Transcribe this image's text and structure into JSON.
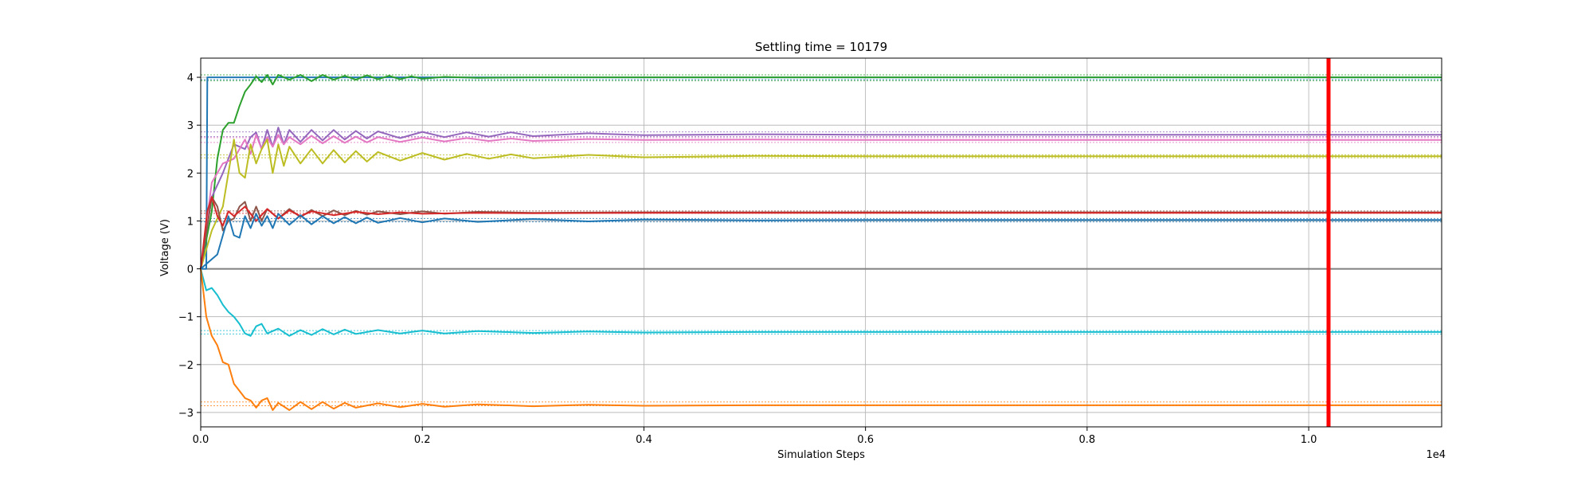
{
  "chart_data": {
    "type": "line",
    "title": "Settling time = 10179",
    "xlabel": "Simulation Steps",
    "ylabel": "Voltage (V)",
    "x_offset_label": "1e4",
    "xlim": [
      0,
      11200
    ],
    "ylim": [
      -3.3,
      4.4
    ],
    "x_tick_values": [
      0,
      2000,
      4000,
      6000,
      8000,
      10000
    ],
    "x_tick_labels": [
      "0.0",
      "0.2",
      "0.4",
      "0.6",
      "0.8",
      "1.0"
    ],
    "y_tick_values": [
      -3,
      -2,
      -1,
      0,
      1,
      2,
      3,
      4
    ],
    "y_tick_labels": [
      "−3",
      "−2",
      "−1",
      "0",
      "1",
      "2",
      "3",
      "4"
    ],
    "grid": true,
    "settling_marker": {
      "x": 10179,
      "color": "#ff0000"
    },
    "zero_line_color": "#808080",
    "reference_lines": [
      {
        "y": 4.05,
        "color": "#2ca02c"
      },
      {
        "y": 3.95,
        "color": "#1f77b4"
      },
      {
        "y": 3.93,
        "color": "#2ca02c"
      },
      {
        "y": 2.86,
        "color": "#9467bd"
      },
      {
        "y": 2.76,
        "color": "#9467bd"
      },
      {
        "y": 2.74,
        "color": "#e377c2"
      },
      {
        "y": 2.64,
        "color": "#e377c2"
      },
      {
        "y": 2.38,
        "color": "#bcbd22"
      },
      {
        "y": 2.32,
        "color": "#bcbd22"
      },
      {
        "y": 1.21,
        "color": "#8c564b"
      },
      {
        "y": 1.16,
        "color": "#d62728"
      },
      {
        "y": 1.05,
        "color": "#1f77b4"
      },
      {
        "y": 0.98,
        "color": "#1f77b4"
      },
      {
        "y": -1.29,
        "color": "#17becf"
      },
      {
        "y": -1.36,
        "color": "#17becf"
      },
      {
        "y": -2.78,
        "color": "#ff7f0e"
      },
      {
        "y": -2.86,
        "color": "#ff7f0e"
      }
    ],
    "series": [
      {
        "color": "#1f77b4",
        "x": [
          0,
          50,
          60,
          11200
        ],
        "y": [
          0,
          0,
          4.0,
          4.0
        ]
      },
      {
        "color": "#2ca02c",
        "x": [
          0,
          100,
          150,
          200,
          250,
          300,
          350,
          400,
          450,
          500,
          550,
          600,
          650,
          700,
          800,
          900,
          1000,
          1100,
          1200,
          1300,
          1400,
          1500,
          1600,
          1700,
          1800,
          1900,
          2000,
          2200,
          2500,
          3000,
          4000,
          6000,
          11200
        ],
        "y": [
          0,
          1.2,
          2.3,
          2.9,
          3.05,
          3.05,
          3.4,
          3.7,
          3.85,
          4.02,
          3.9,
          4.05,
          3.85,
          4.05,
          3.95,
          4.05,
          3.92,
          4.05,
          3.95,
          4.03,
          3.95,
          4.04,
          3.96,
          4.03,
          3.96,
          4.02,
          3.97,
          4.01,
          3.99,
          4.0,
          4.0,
          4.0,
          4.0
        ]
      },
      {
        "color": "#9467bd",
        "x": [
          0,
          100,
          200,
          300,
          400,
          450,
          500,
          550,
          600,
          650,
          700,
          750,
          800,
          900,
          1000,
          1100,
          1200,
          1300,
          1400,
          1500,
          1600,
          1800,
          2000,
          2200,
          2400,
          2600,
          2800,
          3000,
          3500,
          4000,
          5000,
          6000,
          11200
        ],
        "y": [
          0,
          1.5,
          2.0,
          2.6,
          2.5,
          2.75,
          2.85,
          2.5,
          2.9,
          2.55,
          2.95,
          2.6,
          2.9,
          2.65,
          2.9,
          2.68,
          2.9,
          2.7,
          2.88,
          2.72,
          2.87,
          2.73,
          2.86,
          2.75,
          2.85,
          2.76,
          2.85,
          2.77,
          2.83,
          2.79,
          2.81,
          2.8,
          2.8
        ]
      },
      {
        "color": "#e377c2",
        "x": [
          0,
          100,
          200,
          300,
          400,
          450,
          500,
          550,
          600,
          650,
          700,
          750,
          800,
          900,
          1000,
          1100,
          1200,
          1300,
          1400,
          1500,
          1600,
          1800,
          2000,
          2200,
          2400,
          2600,
          2800,
          3000,
          3500,
          4000,
          5000,
          6000,
          11200
        ],
        "y": [
          0,
          1.8,
          2.2,
          2.3,
          2.7,
          2.4,
          2.8,
          2.5,
          2.75,
          2.55,
          2.8,
          2.6,
          2.75,
          2.6,
          2.78,
          2.62,
          2.77,
          2.63,
          2.76,
          2.64,
          2.75,
          2.65,
          2.74,
          2.66,
          2.73,
          2.67,
          2.72,
          2.67,
          2.71,
          2.69,
          2.7,
          2.69,
          2.69
        ]
      },
      {
        "color": "#bcbd22",
        "x": [
          0,
          100,
          200,
          300,
          350,
          400,
          450,
          500,
          550,
          600,
          650,
          700,
          750,
          800,
          900,
          1000,
          1100,
          1200,
          1300,
          1400,
          1500,
          1600,
          1800,
          2000,
          2200,
          2400,
          2600,
          2800,
          3000,
          3500,
          4000,
          5000,
          6000,
          11200
        ],
        "y": [
          0,
          0.8,
          1.3,
          2.7,
          2.0,
          1.9,
          2.6,
          2.2,
          2.5,
          2.7,
          2.0,
          2.6,
          2.15,
          2.55,
          2.2,
          2.5,
          2.2,
          2.48,
          2.22,
          2.46,
          2.24,
          2.44,
          2.26,
          2.42,
          2.28,
          2.4,
          2.3,
          2.39,
          2.31,
          2.38,
          2.33,
          2.36,
          2.35,
          2.35
        ]
      },
      {
        "color": "#8c564b",
        "x": [
          0,
          100,
          150,
          200,
          250,
          300,
          350,
          400,
          450,
          500,
          550,
          600,
          700,
          800,
          900,
          1000,
          1100,
          1200,
          1300,
          1400,
          1500,
          1600,
          1800,
          2000,
          2200,
          2500,
          3000,
          4000,
          5000,
          11200
        ],
        "y": [
          0,
          1.5,
          1.3,
          0.8,
          1.0,
          1.05,
          1.3,
          1.4,
          1.0,
          1.3,
          1.0,
          1.25,
          1.05,
          1.25,
          1.08,
          1.23,
          1.1,
          1.22,
          1.12,
          1.21,
          1.13,
          1.2,
          1.14,
          1.2,
          1.15,
          1.19,
          1.17,
          1.18,
          1.18,
          1.18
        ]
      },
      {
        "color": "#d62728",
        "x": [
          0,
          60,
          100,
          150,
          200,
          250,
          300,
          400,
          500,
          600,
          700,
          800,
          900,
          1000,
          1200,
          1400,
          1600,
          1800,
          2000,
          2500,
          3000,
          4000,
          11200
        ],
        "y": [
          0,
          1.2,
          1.5,
          1.1,
          0.9,
          1.2,
          1.1,
          1.3,
          1.0,
          1.25,
          1.05,
          1.22,
          1.1,
          1.2,
          1.12,
          1.19,
          1.14,
          1.18,
          1.15,
          1.17,
          1.16,
          1.17,
          1.17
        ]
      },
      {
        "color": "#1f77b4",
        "x": [
          0,
          100,
          150,
          200,
          250,
          300,
          350,
          400,
          450,
          500,
          550,
          600,
          650,
          700,
          800,
          900,
          1000,
          1100,
          1200,
          1300,
          1400,
          1500,
          1600,
          1800,
          2000,
          2200,
          2500,
          3000,
          3500,
          4000,
          5000,
          6000,
          11200
        ],
        "y": [
          0,
          0.2,
          0.3,
          0.7,
          1.1,
          0.7,
          0.65,
          1.1,
          0.85,
          1.15,
          0.9,
          1.1,
          0.85,
          1.15,
          0.92,
          1.12,
          0.93,
          1.1,
          0.95,
          1.08,
          0.95,
          1.07,
          0.96,
          1.06,
          0.97,
          1.05,
          0.98,
          1.04,
          0.99,
          1.03,
          1.01,
          1.02,
          1.02
        ]
      },
      {
        "color": "#17becf",
        "x": [
          0,
          50,
          100,
          150,
          200,
          250,
          300,
          350,
          400,
          450,
          500,
          550,
          600,
          700,
          800,
          900,
          1000,
          1100,
          1200,
          1300,
          1400,
          1600,
          1800,
          2000,
          2200,
          2500,
          3000,
          3500,
          4000,
          5000,
          6000,
          11200
        ],
        "y": [
          0,
          -0.45,
          -0.4,
          -0.55,
          -0.75,
          -0.9,
          -1.0,
          -1.15,
          -1.35,
          -1.4,
          -1.2,
          -1.15,
          -1.35,
          -1.25,
          -1.4,
          -1.28,
          -1.38,
          -1.26,
          -1.37,
          -1.27,
          -1.36,
          -1.28,
          -1.35,
          -1.29,
          -1.35,
          -1.3,
          -1.34,
          -1.31,
          -1.33,
          -1.32,
          -1.32,
          -1.32
        ]
      },
      {
        "color": "#ff7f0e",
        "x": [
          0,
          50,
          100,
          150,
          200,
          250,
          300,
          350,
          400,
          450,
          500,
          550,
          600,
          650,
          700,
          800,
          900,
          1000,
          1100,
          1200,
          1300,
          1400,
          1600,
          1800,
          2000,
          2200,
          2500,
          3000,
          3500,
          4000,
          5000,
          6000,
          11200
        ],
        "y": [
          0,
          -1.0,
          -1.4,
          -1.6,
          -1.95,
          -2.0,
          -2.4,
          -2.55,
          -2.7,
          -2.75,
          -2.9,
          -2.75,
          -2.7,
          -2.95,
          -2.8,
          -2.95,
          -2.78,
          -2.93,
          -2.78,
          -2.92,
          -2.8,
          -2.9,
          -2.81,
          -2.89,
          -2.82,
          -2.88,
          -2.83,
          -2.87,
          -2.84,
          -2.86,
          -2.85,
          -2.85,
          -2.85
        ]
      }
    ]
  }
}
